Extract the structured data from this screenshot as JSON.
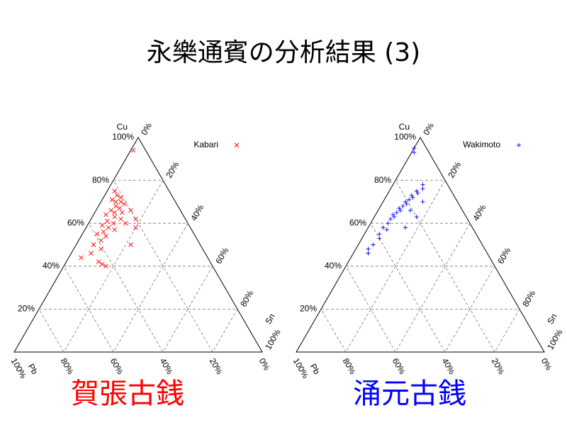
{
  "title": "永樂通賓の分析結果 (3)",
  "chart_data": [
    {
      "type": "ternary",
      "caption": "賀張古銭",
      "caption_color": "#ff0000",
      "a_label": "Cu",
      "b_label": "Sn",
      "c_label": "Pb",
      "cu_ticks": [
        {
          "value": 20,
          "label": "20%"
        },
        {
          "value": 40,
          "label": "40%"
        },
        {
          "value": 60,
          "label": "60%"
        },
        {
          "value": 80,
          "label": "80%"
        },
        {
          "value": 100,
          "label": "100%"
        }
      ],
      "sn_ticks": [
        {
          "value": 0,
          "label": "0%"
        },
        {
          "value": 20,
          "label": "20%"
        },
        {
          "value": 40,
          "label": "40%"
        },
        {
          "value": 60,
          "label": "60%"
        },
        {
          "value": 80,
          "label": "80%"
        },
        {
          "value": 100,
          "label": "100%"
        }
      ],
      "pb_ticks": [
        {
          "value": 100,
          "label": "100%"
        },
        {
          "value": 80,
          "label": "80%"
        },
        {
          "value": 60,
          "label": "60%"
        },
        {
          "value": 40,
          "label": "40%"
        },
        {
          "value": 20,
          "label": "20%"
        },
        {
          "value": 0,
          "label": "0%"
        }
      ],
      "grid": true,
      "legend": "upper right",
      "series": [
        {
          "name": "Kabari",
          "color": "#ff0000",
          "marker": "x",
          "cu": [
            94,
            75,
            73,
            72,
            71,
            70,
            70,
            69,
            68,
            67,
            66,
            65,
            65,
            64,
            63,
            62,
            61,
            60,
            59,
            58,
            57,
            56,
            55,
            54,
            52,
            50,
            48,
            46,
            44,
            42,
            41,
            62,
            58,
            50,
            40,
            66,
            60
          ],
          "sn": [
            1,
            3,
            5,
            7,
            4,
            8,
            6,
            10,
            7,
            9,
            6,
            11,
            8,
            5,
            9,
            12,
            7,
            10,
            6,
            9,
            12,
            8,
            6,
            10,
            9,
            7,
            11,
            8,
            5,
            13,
            15,
            18,
            20,
            22,
            17,
            14,
            15
          ],
          "pb": [
            5,
            22,
            22,
            21,
            25,
            22,
            24,
            21,
            25,
            24,
            28,
            24,
            27,
            31,
            28,
            26,
            32,
            30,
            35,
            33,
            31,
            36,
            39,
            36,
            39,
            43,
            41,
            46,
            51,
            45,
            44,
            20,
            22,
            28,
            43,
            20,
            25
          ]
        }
      ]
    },
    {
      "type": "ternary",
      "caption": "涌元古銭",
      "caption_color": "#0000ff",
      "a_label": "Cu",
      "b_label": "Sn",
      "c_label": "Pb",
      "cu_ticks": [
        {
          "value": 20,
          "label": "20%"
        },
        {
          "value": 40,
          "label": "40%"
        },
        {
          "value": 60,
          "label": "60%"
        },
        {
          "value": 80,
          "label": "80%"
        },
        {
          "value": 100,
          "label": "100%"
        }
      ],
      "sn_ticks": [
        {
          "value": 0,
          "label": "0%"
        },
        {
          "value": 20,
          "label": "20%"
        },
        {
          "value": 40,
          "label": "40%"
        },
        {
          "value": 60,
          "label": "60%"
        },
        {
          "value": 80,
          "label": "80%"
        },
        {
          "value": 100,
          "label": "100%"
        }
      ],
      "pb_ticks": [
        {
          "value": 100,
          "label": "100%"
        },
        {
          "value": 80,
          "label": "80%"
        },
        {
          "value": 60,
          "label": "60%"
        },
        {
          "value": 40,
          "label": "40%"
        },
        {
          "value": 20,
          "label": "20%"
        },
        {
          "value": 0,
          "label": "0%"
        }
      ],
      "grid": true,
      "legend": "upper right",
      "series": [
        {
          "name": "Wakimoto",
          "color": "#0000ff",
          "marker": "+",
          "cu": [
            95,
            93,
            78,
            76,
            75,
            74,
            73,
            72,
            71,
            70,
            69,
            68,
            67,
            66,
            65,
            64,
            63,
            62,
            60,
            58,
            57,
            55,
            53,
            50,
            48,
            46,
            63,
            70,
            58,
            66
          ],
          "sn": [
            0,
            1,
            12,
            13,
            11,
            12,
            10,
            11,
            10,
            9,
            10,
            9,
            8,
            9,
            8,
            7,
            8,
            7,
            7,
            6,
            8,
            6,
            7,
            6,
            5,
            6,
            17,
            16,
            15,
            13
          ],
          "pb": [
            5,
            6,
            10,
            11,
            14,
            14,
            17,
            17,
            19,
            21,
            21,
            23,
            25,
            25,
            27,
            29,
            29,
            31,
            33,
            36,
            35,
            39,
            40,
            44,
            47,
            48,
            20,
            14,
            27,
            21
          ]
        }
      ]
    }
  ]
}
